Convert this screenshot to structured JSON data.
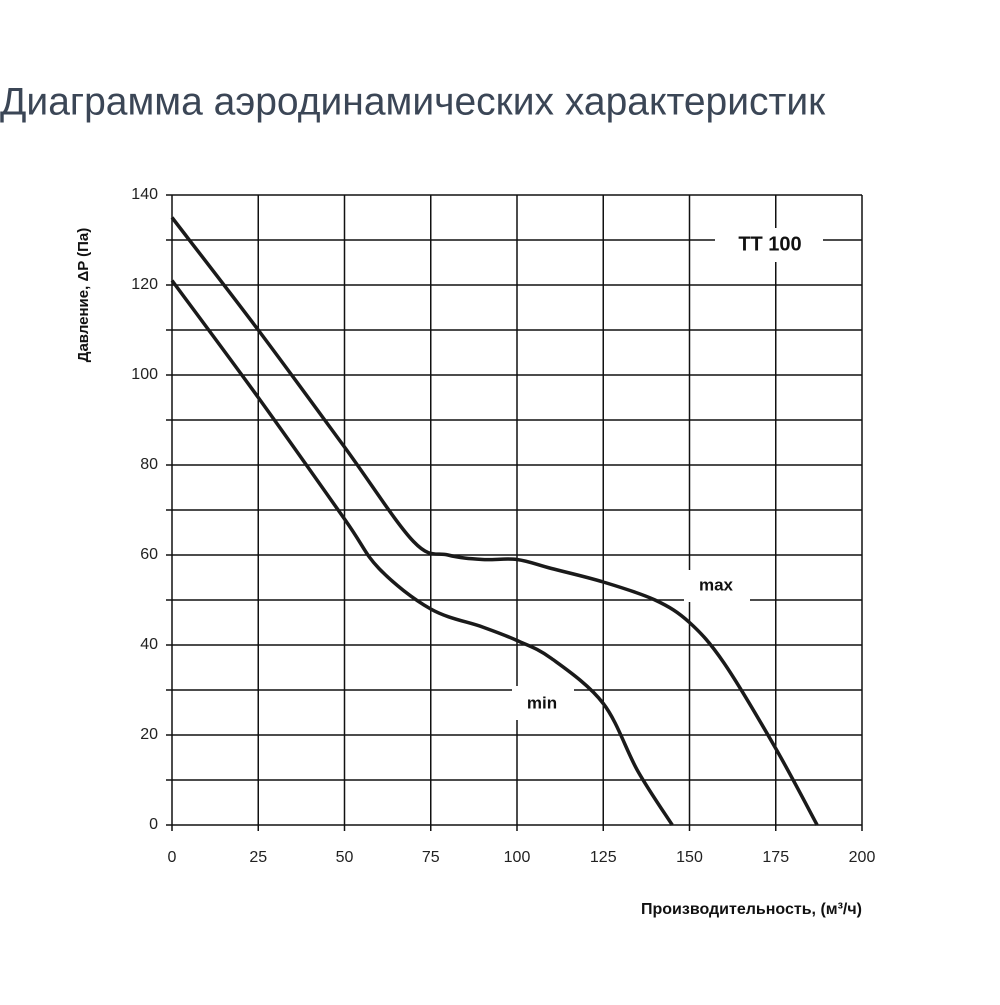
{
  "chart_data": {
    "type": "line",
    "title": "Диаграмма аэродинамических характеристик",
    "x_label": "Производительность, (м³/ч)",
    "y_label": "Давление, ΔP (Па)",
    "model_label": "ТТ 100",
    "xlim": [
      0,
      200
    ],
    "xticks": [
      0,
      25,
      50,
      75,
      100,
      125,
      150,
      175,
      200
    ],
    "ylim": [
      0,
      140
    ],
    "yticks": [
      0,
      20,
      40,
      60,
      80,
      100,
      120,
      140
    ],
    "y_minor_gridlines": [
      10,
      30,
      50,
      70,
      90,
      110,
      130
    ],
    "grid": true,
    "series": [
      {
        "name": "max",
        "color": "#1a1a1a",
        "x": [
          0,
          25,
          50,
          70,
          80,
          90,
          100,
          110,
          125,
          140,
          150,
          160,
          175,
          187
        ],
        "values": [
          135,
          110,
          84,
          63,
          60,
          59,
          59,
          57,
          54,
          50,
          45,
          36,
          17,
          0
        ]
      },
      {
        "name": "min",
        "color": "#1a1a1a",
        "x": [
          0,
          25,
          50,
          60,
          75,
          90,
          100,
          110,
          125,
          135,
          145
        ],
        "values": [
          121,
          95,
          68,
          57,
          48,
          44,
          41,
          37,
          27,
          12,
          0
        ]
      }
    ]
  }
}
